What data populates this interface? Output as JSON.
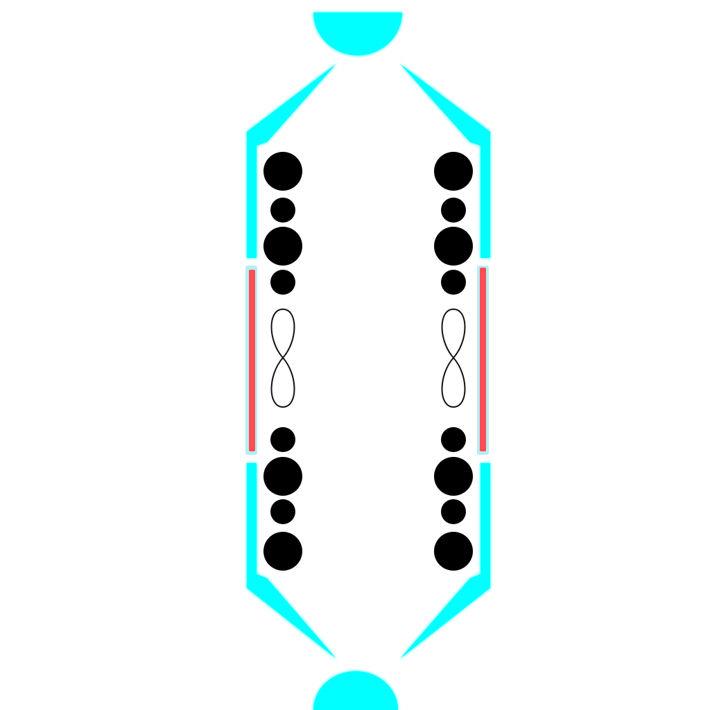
{
  "game": {
    "colors": {
      "background": "#ffffff",
      "neon": "#00ffff",
      "glow": "#66ffff",
      "wall_inner": "#ffffff",
      "gate": "#ff4d55",
      "gate_rim": "#9fe8ee",
      "orb": "#000000",
      "infinity_stroke": "#111111"
    },
    "goals": [
      {
        "name": "top-goal",
        "shape": "half-disc"
      },
      {
        "name": "bottom-goal",
        "shape": "half-disc"
      }
    ],
    "lanes": [
      {
        "side": "left",
        "orb_sizes_top": [
          "large",
          "small",
          "large",
          "small"
        ],
        "center_symbol": "infinity-icon",
        "orb_sizes_bottom": [
          "small",
          "large",
          "small",
          "large"
        ]
      },
      {
        "side": "right",
        "orb_sizes_top": [
          "large",
          "small",
          "large",
          "small"
        ],
        "center_symbol": "infinity-icon",
        "orb_sizes_bottom": [
          "small",
          "large",
          "small",
          "large"
        ]
      }
    ],
    "gates": [
      {
        "side": "left",
        "state": "closed"
      },
      {
        "side": "right",
        "state": "closed"
      }
    ]
  }
}
